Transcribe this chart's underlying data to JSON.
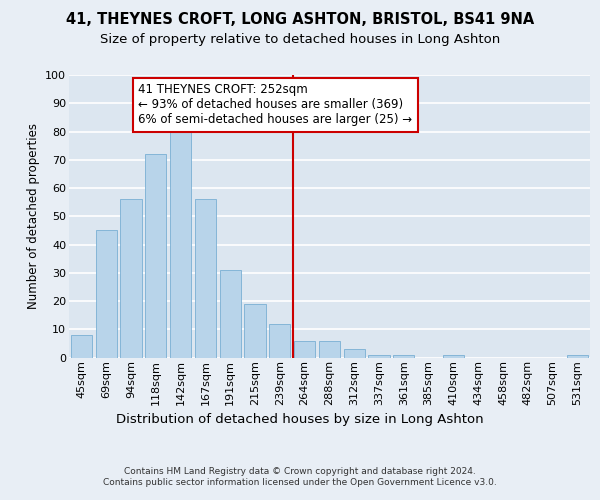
{
  "title": "41, THEYNES CROFT, LONG ASHTON, BRISTOL, BS41 9NA",
  "subtitle": "Size of property relative to detached houses in Long Ashton",
  "xlabel": "Distribution of detached houses by size in Long Ashton",
  "ylabel": "Number of detached properties",
  "categories": [
    "45sqm",
    "69sqm",
    "94sqm",
    "118sqm",
    "142sqm",
    "167sqm",
    "191sqm",
    "215sqm",
    "239sqm",
    "264sqm",
    "288sqm",
    "312sqm",
    "337sqm",
    "361sqm",
    "385sqm",
    "410sqm",
    "434sqm",
    "458sqm",
    "482sqm",
    "507sqm",
    "531sqm"
  ],
  "values": [
    8,
    45,
    56,
    72,
    80,
    56,
    31,
    19,
    12,
    6,
    6,
    3,
    1,
    1,
    0,
    1,
    0,
    0,
    0,
    0,
    1
  ],
  "bar_color": "#b8d4ea",
  "bar_edge_color": "#7aafd4",
  "fig_background_color": "#e8eef5",
  "plot_background_color": "#dce6f0",
  "grid_color": "#ffffff",
  "vline_color": "#cc0000",
  "annotation_text": "41 THEYNES CROFT: 252sqm\n← 93% of detached houses are smaller (369)\n6% of semi-detached houses are larger (25) →",
  "annotation_box_color": "#ffffff",
  "annotation_box_edge_color": "#cc0000",
  "ylim": [
    0,
    100
  ],
  "yticks": [
    0,
    10,
    20,
    30,
    40,
    50,
    60,
    70,
    80,
    90,
    100
  ],
  "footer": "Contains HM Land Registry data © Crown copyright and database right 2024.\nContains public sector information licensed under the Open Government Licence v3.0.",
  "title_fontsize": 10.5,
  "subtitle_fontsize": 9.5,
  "ylabel_fontsize": 8.5,
  "xlabel_fontsize": 9.5,
  "annotation_fontsize": 8.5,
  "tick_fontsize": 8,
  "footer_fontsize": 6.5
}
